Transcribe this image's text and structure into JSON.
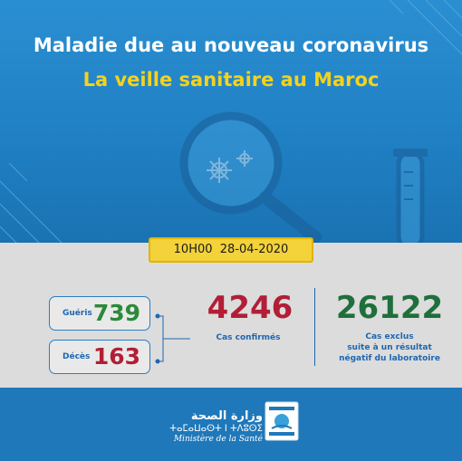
{
  "header": {
    "title": "Maladie due au nouveau coronavirus",
    "subtitle": "La veille sanitaire au Maroc"
  },
  "datetime": {
    "time": "10H00",
    "date": "28-04-2020"
  },
  "stats": {
    "recovered": {
      "label": "Guéris",
      "value": "739"
    },
    "deaths": {
      "label": "Décès",
      "value": "163"
    },
    "confirmed": {
      "label": "Cas confirmés",
      "value": "4246"
    },
    "excluded": {
      "value": "26122",
      "label_lines": [
        "Cas exclus",
        "suite à un résultat",
        "négatif du laboratoire"
      ]
    }
  },
  "footer": {
    "ministry_ar": "وزارة الصحة",
    "ministry_tifinagh": "ⵜⴰⵎⴰⵡⴰⵙⵜ ⵏ ⵜⴷⵓⵙⵉ",
    "ministry_fr": "Ministère de la Santé"
  },
  "colors": {
    "background_blue": "#1f7fc2",
    "band_gray": "#dcdcdc",
    "title_yellow": "#f6d21b",
    "green": "#2a8a3a",
    "red": "#b21e35",
    "label_blue": "#1e66b0"
  }
}
